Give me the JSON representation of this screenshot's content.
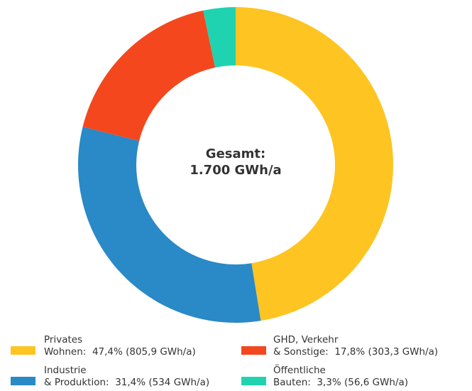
{
  "chart_data": {
    "type": "donut",
    "center_label": "Gesamt:\n1.700 GWh/a",
    "categories": [
      "Privates\nWohnen:",
      "Industrie\n& Produktion:",
      "GHD, Verkehr\n& Sonstige:",
      "Öffentliche\nBauten:"
    ],
    "values": [
      47.4,
      31.4,
      17.8,
      3.3
    ],
    "value_labels": [
      "47,4% (805,9 GWh/a)",
      "31,4% (534 GWh/a)",
      "17,8% (303,3 GWh/a)",
      "3,3% (56,6 GWh/a)"
    ],
    "colors": [
      "#fec422",
      "#2a89c7",
      "#f4471e",
      "#20d3b0"
    ]
  }
}
